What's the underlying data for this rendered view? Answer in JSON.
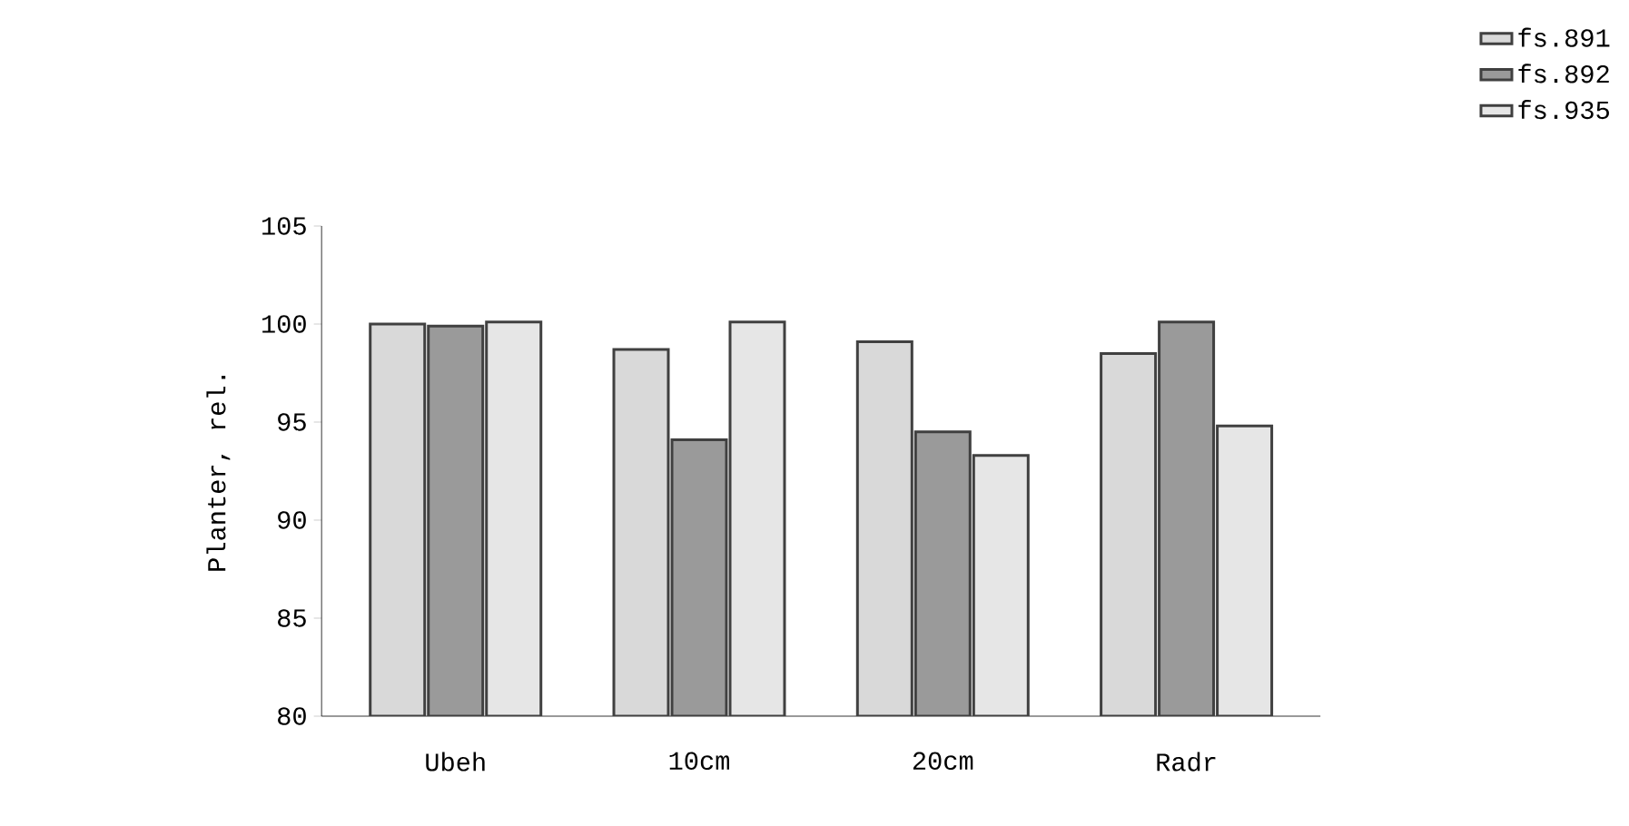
{
  "chart_data": {
    "type": "bar",
    "ylabel": "Planter, rel.",
    "categories": [
      "Ubeh",
      "10cm",
      "20cm",
      "Radr"
    ],
    "series": [
      {
        "name": "fs.891",
        "color": "#d9d9d9",
        "values": [
          100,
          98.7,
          99.1,
          98.5
        ]
      },
      {
        "name": "fs.892",
        "color": "#9a9a9a",
        "values": [
          99.9,
          94.1,
          94.5,
          100.1
        ]
      },
      {
        "name": "fs.935",
        "color": "#e6e6e6",
        "values": [
          100.1,
          100.1,
          93.3,
          94.8
        ]
      }
    ],
    "ylim": [
      80,
      105
    ],
    "yticks": [
      80,
      85,
      90,
      95,
      100,
      105
    ],
    "grid": false,
    "legend": "top right"
  }
}
